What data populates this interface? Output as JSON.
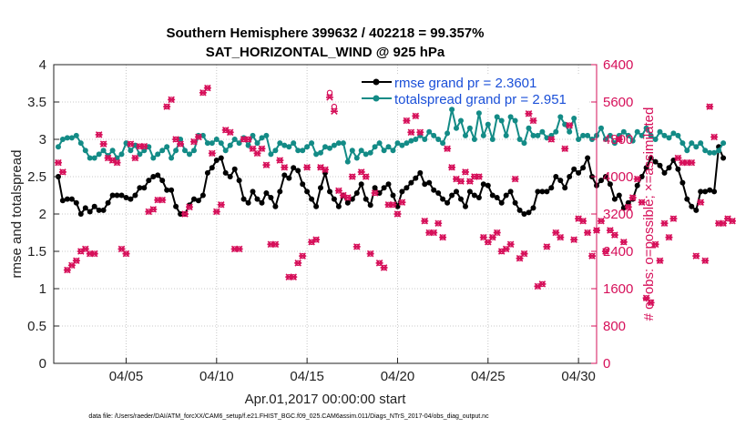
{
  "chart_data": {
    "type": "line",
    "title_line1": "Southern Hemisphere 399632 / 402218 = 99.357%",
    "title_line2": "SAT_HORIZONTAL_WIND @ 925 hPa",
    "xlabel": "Apr.01,2017 00:00:00 start",
    "ylabel_left": "rmse and totalspread",
    "ylabel_right": "# of obs: o=possible; ×=assimilated",
    "footnote": "data file: /Users/raeder/DAI/ATM_forcXX/CAM6_setup/f.e21.FHIST_BGC.f09_025.CAM6assim.011/Diags_NTrS_2017-04/obs_diag_output.nc",
    "x_tick_labels": [
      "04/05",
      "04/10",
      "04/15",
      "04/20",
      "04/25",
      "04/30"
    ],
    "x_tick_days": [
      5,
      10,
      15,
      20,
      25,
      30
    ],
    "xlim": [
      1,
      31
    ],
    "ylim_left": [
      0,
      4
    ],
    "y_ticks_left": [
      "0",
      "0.5",
      "1",
      "1.5",
      "2",
      "2.5",
      "3",
      "3.5",
      "4"
    ],
    "ylim_right": [
      0,
      6400
    ],
    "y_ticks_right": [
      "0",
      "800",
      "1600",
      "2400",
      "3200",
      "4000",
      "4800",
      "5600",
      "6400"
    ],
    "legend": [
      {
        "name": "rmse grand pr = 2.3601",
        "color": "#000000"
      },
      {
        "name": "totalspread grand pr = 2.951",
        "color": "#138b86"
      }
    ],
    "series": [
      {
        "name": "rmse",
        "color": "#000000",
        "axis": "left",
        "start_day": 1.25,
        "step_days": 0.25,
        "values": [
          2.5,
          2.18,
          2.2,
          2.2,
          2.15,
          2.0,
          2.08,
          2.03,
          2.1,
          2.05,
          2.05,
          2.15,
          2.25,
          2.25,
          2.25,
          2.22,
          2.2,
          2.25,
          2.35,
          2.35,
          2.45,
          2.5,
          2.52,
          2.45,
          2.32,
          2.32,
          2.1,
          2.0,
          2.0,
          2.12,
          2.2,
          2.18,
          2.25,
          2.55,
          2.62,
          2.72,
          2.75,
          2.55,
          2.5,
          2.6,
          2.45,
          2.2,
          2.15,
          2.3,
          2.2,
          2.15,
          2.28,
          2.22,
          2.1,
          2.3,
          2.52,
          2.48,
          2.62,
          2.58,
          2.4,
          2.3,
          2.2,
          2.1,
          2.35,
          2.55,
          2.3,
          2.2,
          2.1,
          2.25,
          2.15,
          2.2,
          2.28,
          2.4,
          2.2,
          2.12,
          2.35,
          2.28,
          2.35,
          2.4,
          2.25,
          2.1,
          2.3,
          2.35,
          2.42,
          2.48,
          2.55,
          2.4,
          2.42,
          2.32,
          2.28,
          2.2,
          2.15,
          2.25,
          2.3,
          2.2,
          2.1,
          2.3,
          2.25,
          2.22,
          2.4,
          2.38,
          2.25,
          2.22,
          2.15,
          2.25,
          2.3,
          2.15,
          2.05,
          2.0,
          2.02,
          2.08,
          2.3,
          2.3,
          2.3,
          2.35,
          2.5,
          2.45,
          2.35,
          2.5,
          2.6,
          2.55,
          2.62,
          2.75,
          2.5,
          2.38,
          2.45,
          2.5,
          2.4,
          2.2,
          2.25,
          2.08,
          2.15,
          2.2,
          2.38,
          2.5,
          2.62,
          2.75,
          2.7,
          2.65,
          2.55,
          2.62,
          2.72,
          2.6,
          2.42,
          2.2,
          2.1,
          2.05,
          2.3,
          2.3,
          2.32,
          2.3,
          2.9,
          2.75
        ]
      },
      {
        "name": "totalspread",
        "color": "#138b86",
        "axis": "left",
        "start_day": 1.25,
        "step_days": 0.25,
        "values": [
          2.9,
          3.0,
          3.02,
          3.02,
          3.05,
          2.95,
          2.85,
          2.75,
          2.75,
          2.8,
          2.85,
          2.78,
          2.85,
          2.75,
          2.8,
          2.95,
          2.85,
          2.92,
          2.8,
          2.85,
          2.9,
          2.75,
          2.8,
          2.85,
          2.9,
          2.75,
          2.85,
          3.0,
          2.85,
          2.8,
          2.85,
          3.05,
          3.05,
          2.95,
          2.95,
          3.0,
          2.95,
          2.85,
          2.92,
          3.0,
          2.95,
          3.02,
          2.92,
          3.05,
          2.95,
          3.02,
          3.05,
          2.8,
          2.85,
          2.95,
          2.92,
          2.9,
          2.95,
          2.85,
          2.85,
          2.9,
          2.95,
          2.8,
          2.82,
          2.9,
          2.88,
          2.92,
          2.95,
          2.95,
          2.7,
          2.85,
          2.75,
          2.85,
          2.8,
          2.82,
          2.9,
          2.95,
          2.85,
          2.9,
          2.85,
          2.95,
          2.92,
          2.95,
          2.98,
          3.0,
          3.05,
          3.0,
          3.1,
          3.05,
          3.0,
          2.95,
          3.08,
          3.4,
          3.15,
          3.25,
          3.05,
          3.15,
          3.0,
          3.35,
          3.05,
          3.2,
          3.0,
          3.3,
          3.25,
          3.05,
          3.3,
          3.25,
          3.0,
          2.95,
          3.15,
          3.05,
          3.05,
          3.1,
          3.02,
          3.05,
          3.1,
          3.3,
          3.2,
          3.1,
          3.28,
          3.0,
          3.05,
          3.05,
          3.0,
          3.05,
          3.15,
          3.0,
          3.05,
          2.95,
          3.05,
          3.1,
          3.05,
          2.98,
          3.1,
          3.05,
          3.15,
          3.05,
          3.0,
          3.1,
          3.05,
          3.02,
          3.08,
          3.05,
          2.95,
          2.85,
          2.95,
          2.9,
          2.95,
          2.85,
          2.82,
          2.82,
          2.85,
          2.95
        ]
      },
      {
        "name": "observations possible",
        "color": "#d6105a",
        "axis": "right",
        "marker": "o",
        "start_day": 1.25,
        "step_days": 0.25,
        "values": [
          4300,
          4100,
          2000,
          2100,
          2200,
          2400,
          2450,
          2350,
          2350,
          4900,
          4700,
          4400,
          4350,
          4300,
          2450,
          2350,
          4700,
          4400,
          4650,
          4650,
          3250,
          3300,
          3500,
          3500,
          5500,
          5650,
          4800,
          4700,
          3200,
          3350,
          4750,
          4850,
          5800,
          5900,
          4500,
          3250,
          3400,
          5000,
          4950,
          2450,
          2450,
          4800,
          4800,
          4600,
          4500,
          4600,
          4250,
          2550,
          2550,
          4350,
          4200,
          1850,
          1850,
          2150,
          2300,
          4200,
          2600,
          2650,
          4200,
          4150,
          5800,
          5500,
          3700,
          3600,
          3550,
          4000,
          2500,
          4100,
          4000,
          2350,
          3650,
          2150,
          2050,
          3400,
          3400,
          3200,
          3450,
          5200,
          4950,
          5300,
          4950,
          3050,
          2800,
          2800,
          3000,
          2700,
          4600,
          4200,
          3950,
          3900,
          4100,
          3900,
          4000,
          4000,
          2700,
          2600,
          2700,
          2800,
          2400,
          2450,
          2550,
          3950,
          2250,
          2350,
          5350,
          5200,
          1650,
          1700,
          2500,
          4800,
          2800,
          2700,
          4600,
          5100,
          2650,
          3100,
          3050,
          2800,
          2300,
          2850,
          3050,
          2400,
          2850,
          2750,
          4800,
          2600,
          3350,
          3550,
          3950,
          3450,
          1400,
          1300,
          2550,
          2200,
          3000,
          2700,
          3100,
          4400,
          4300,
          4300,
          4300,
          2300,
          3450,
          2200,
          5500,
          4850,
          3000,
          3000,
          3100,
          3050
        ]
      },
      {
        "name": "observations assimilated",
        "color": "#d6105a",
        "axis": "right",
        "marker": "x",
        "start_day": 1.25,
        "step_days": 0.25,
        "values": [
          4300,
          4100,
          2000,
          2100,
          2200,
          2400,
          2450,
          2350,
          2350,
          4900,
          4700,
          4400,
          4350,
          4300,
          2450,
          2350,
          4700,
          4400,
          4650,
          4650,
          3250,
          3300,
          3500,
          3500,
          5500,
          5650,
          4800,
          4700,
          3200,
          3350,
          4750,
          4850,
          5800,
          5900,
          4500,
          3250,
          3400,
          5000,
          4950,
          2450,
          2450,
          4800,
          4800,
          4600,
          4500,
          4600,
          4250,
          2550,
          2550,
          4350,
          4200,
          1850,
          1850,
          2150,
          2300,
          4200,
          2600,
          2650,
          4200,
          4150,
          5700,
          5400,
          3700,
          3600,
          3550,
          4000,
          2500,
          4100,
          4000,
          2350,
          3650,
          2150,
          2050,
          3400,
          3400,
          3200,
          3450,
          5200,
          4950,
          5300,
          4950,
          3050,
          2800,
          2800,
          3000,
          2700,
          4600,
          4200,
          3950,
          3900,
          4100,
          3900,
          4000,
          4000,
          2700,
          2600,
          2700,
          2800,
          2400,
          2450,
          2550,
          3950,
          2250,
          2350,
          5350,
          5200,
          1650,
          1700,
          2500,
          4800,
          2800,
          2700,
          4600,
          5100,
          2650,
          3100,
          3050,
          2800,
          2300,
          2850,
          3050,
          2400,
          2850,
          2750,
          4800,
          2600,
          3350,
          3550,
          3950,
          3450,
          1400,
          1300,
          2550,
          2200,
          3000,
          2700,
          3100,
          4400,
          4300,
          4300,
          4300,
          2300,
          3450,
          2200,
          5500,
          4850,
          3000,
          3000,
          3100,
          3050
        ]
      }
    ]
  }
}
